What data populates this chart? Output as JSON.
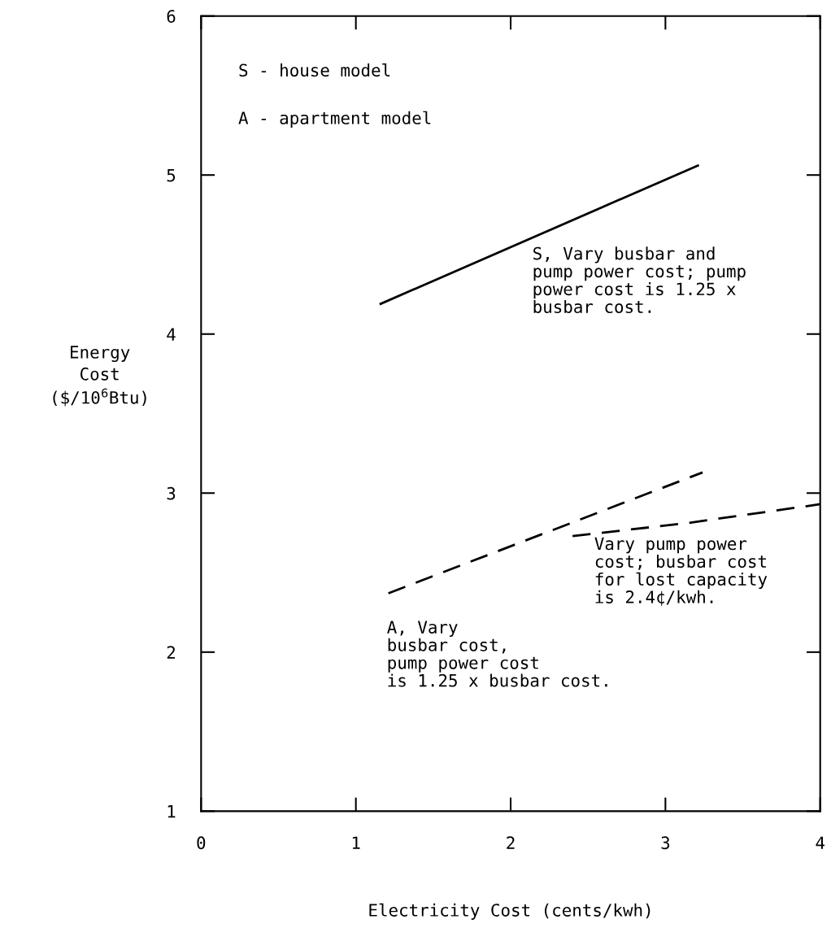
{
  "chart_data": {
    "type": "line",
    "xlabel": "Electricity Cost (cents/kwh)",
    "ylabel": "Energy\nCost\n($/10$^{6}$Btu)",
    "xlim": [
      0,
      4
    ],
    "ylim": [
      1,
      6
    ],
    "xticks": [
      0,
      1,
      2,
      3,
      4
    ],
    "yticks": [
      1,
      2,
      3,
      4,
      5,
      6
    ],
    "marker": "none",
    "series": [
      {
        "color": "#000000",
        "line_style": "solid",
        "x": [
          1.16,
          3.21
        ],
        "values": [
          4.19,
          5.06
        ]
      },
      {
        "color": "#000000",
        "line_style": "dashed",
        "x": [
          1.21,
          3.24
        ],
        "values": [
          2.37,
          3.13
        ]
      },
      {
        "color": "#000000",
        "line_style": "dashed",
        "x": [
          2.4,
          3.13,
          4.0
        ],
        "values": [
          2.73,
          2.81,
          2.93
        ]
      }
    ],
    "annotations": [
      "S - house model",
      "A - apartment model",
      "S, Vary busbar and\npump power cost; pump\npower cost is 1.25 x\nbusbar cost.",
      "A, Vary\nbusbar cost,\npump power cost\nis 1.25 x busbar cost.",
      "Vary pump power\ncost; busbar cost\nfor lost capacity\nis 2.4¢/kwh."
    ]
  }
}
